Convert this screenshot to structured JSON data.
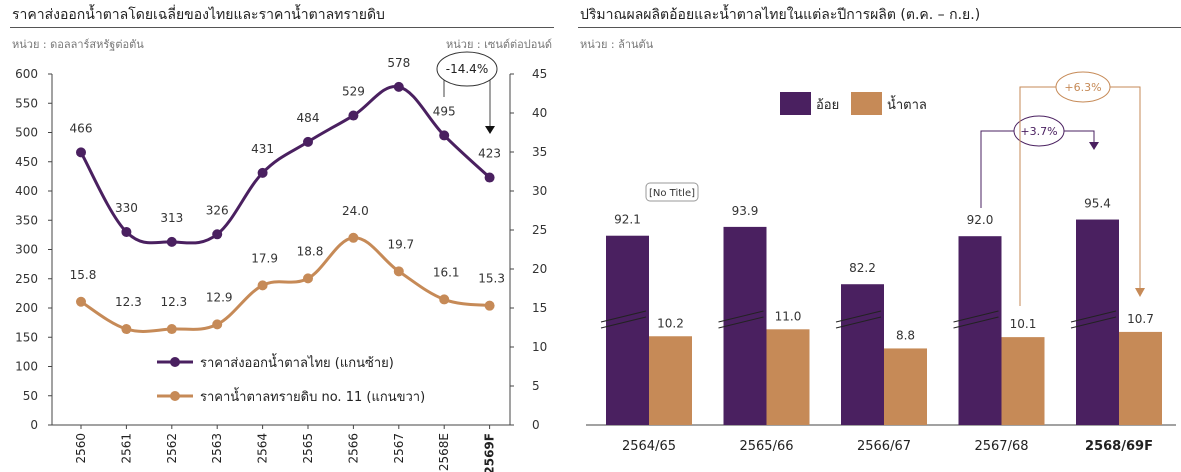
{
  "colors": {
    "primary": "#4a2060",
    "secondary": "#c68a57",
    "axis": "#444444"
  },
  "left": {
    "title": "ราคาส่งออกน้ำตาลโดยเฉลี่ยของไทยและราคาน้ำตาลทรายดิบ",
    "unit_left": "หน่วย : ดอลลาร์สหรัฐต่อตัน",
    "unit_right": "หน่วย : เซนต์ต่อปอนด์",
    "change_label": "-14.4%"
  },
  "right": {
    "title": "ปริมาณผลผลิตอ้อยและน้ำตาลไทยในแต่ละปีการผลิต (ต.ค. – ก.ย.)",
    "unit": "หน่วย : ล้านตัน",
    "change_cane": "+3.7%",
    "change_sugar": "+6.3%",
    "tooltip": "[No Title]"
  },
  "chart_data": [
    {
      "type": "line",
      "title": "ราคาส่งออกน้ำตาลโดยเฉลี่ยของไทยและราคาน้ำตาลทรายดิบ",
      "x": [
        "2560",
        "2561",
        "2562",
        "2563",
        "2564",
        "2565",
        "2566",
        "2567",
        "2568E",
        "2569F"
      ],
      "ylim_left": [
        0,
        600
      ],
      "yticks_left": [
        0,
        50,
        100,
        150,
        200,
        250,
        300,
        350,
        400,
        450,
        500,
        550,
        600
      ],
      "ylim_right": [
        0,
        45
      ],
      "yticks_right": [
        0,
        5,
        10,
        15,
        20,
        25,
        30,
        35,
        40,
        45
      ],
      "series": [
        {
          "name": "ราคาส่งออกน้ำตาลไทย (แกนซ้าย)",
          "axis": "left",
          "values": [
            466,
            330,
            313,
            326,
            431,
            484,
            529,
            578,
            495,
            423
          ],
          "labels": [
            "466",
            "330",
            "313",
            "326",
            "431",
            "484",
            "529",
            "578",
            "495",
            "423"
          ]
        },
        {
          "name": "ราคาน้ำตาลทรายดิบ no. 11 (แกนขวา)",
          "axis": "right",
          "values": [
            15.8,
            12.3,
            12.3,
            12.9,
            17.9,
            18.8,
            24.0,
            19.7,
            16.1,
            15.3
          ],
          "labels": [
            "15.8",
            "12.3",
            "12.3",
            "12.9",
            "17.9",
            "18.8",
            "24.0",
            "19.7",
            "16.1",
            "15.3"
          ]
        }
      ],
      "grid": false,
      "legend": "bottom-center"
    },
    {
      "type": "bar",
      "title": "ปริมาณผลผลิตอ้อยและน้ำตาลไทยในแต่ละปีการผลิต (ต.ค. – ก.ย.)",
      "categories": [
        "2564/65",
        "2565/66",
        "2566/67",
        "2567/68",
        "2568/69F"
      ],
      "series": [
        {
          "name": "อ้อย",
          "values": [
            92.1,
            93.9,
            82.2,
            92.0,
            95.4
          ],
          "labels": [
            "92.1",
            "93.9",
            "82.2",
            "92.0",
            "95.4"
          ]
        },
        {
          "name": "น้ำตาล",
          "values": [
            10.2,
            11.0,
            8.8,
            10.1,
            10.7
          ],
          "labels": [
            "10.2",
            "11.0",
            "8.8",
            "10.1",
            "10.7"
          ]
        }
      ],
      "axis_break": true,
      "legend": "top-center"
    }
  ]
}
